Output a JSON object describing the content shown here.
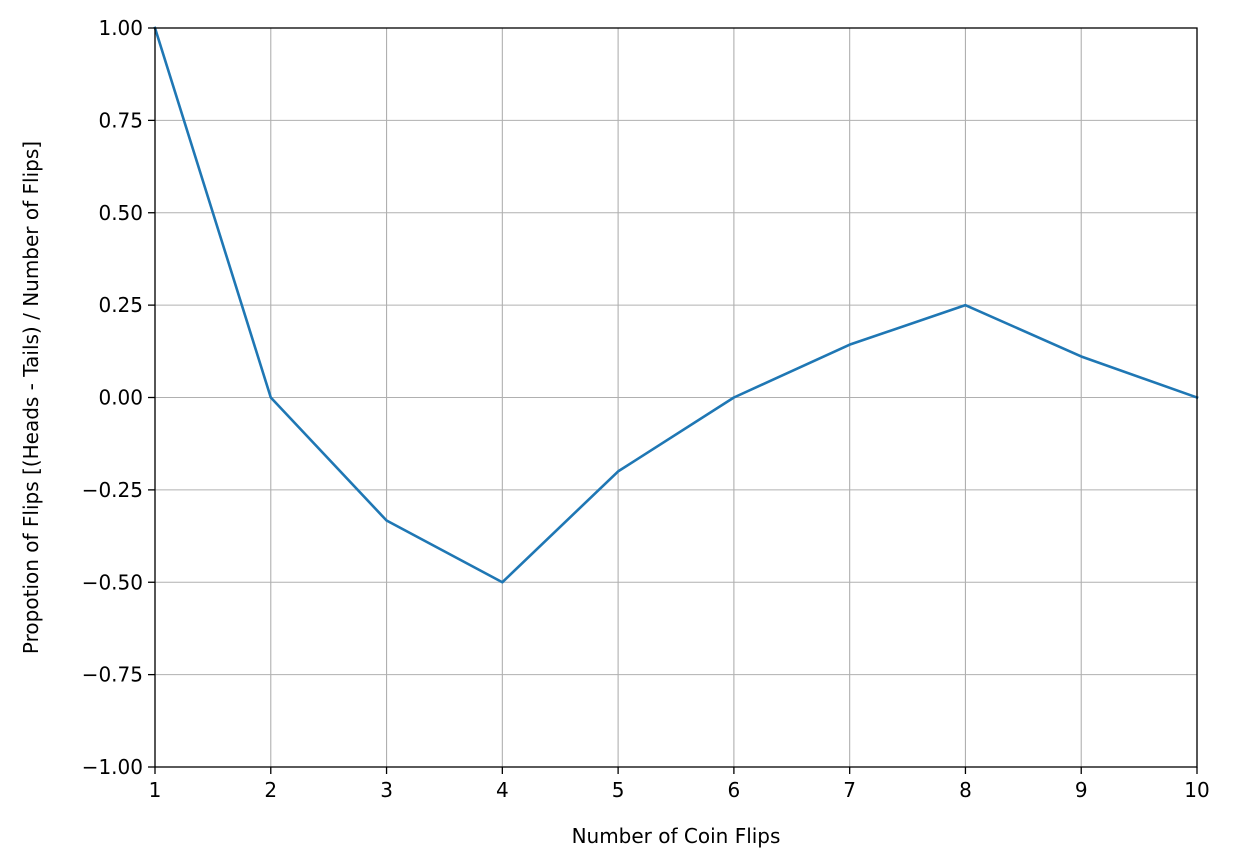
{
  "chart_data": {
    "type": "line",
    "title": "",
    "xlabel": "Number of Coin Flips",
    "ylabel": "Propotion of Flips [(Heads - Tails) / Number of Flips]",
    "xlim": [
      1,
      10
    ],
    "ylim": [
      -1.0,
      1.0
    ],
    "grid": true,
    "xticks": [
      1,
      2,
      3,
      4,
      5,
      6,
      7,
      8,
      9,
      10
    ],
    "xtick_labels": [
      "1",
      "2",
      "3",
      "4",
      "5",
      "6",
      "7",
      "8",
      "9",
      "10"
    ],
    "yticks": [
      -1.0,
      -0.75,
      -0.5,
      -0.25,
      0.0,
      0.25,
      0.5,
      0.75,
      1.0
    ],
    "ytick_labels": [
      "−1.00",
      "−0.75",
      "−0.50",
      "−0.25",
      "0.00",
      "0.25",
      "0.50",
      "0.75",
      "1.00"
    ],
    "series": [
      {
        "color": "#1f77b4",
        "x": [
          1,
          2,
          3,
          4,
          5,
          6,
          7,
          8,
          9,
          10
        ],
        "y": [
          1.0,
          0.0,
          -0.333,
          -0.5,
          -0.2,
          0.0,
          0.143,
          0.25,
          0.111,
          0.0
        ]
      }
    ]
  },
  "colors": {
    "grid": "#b0b0b0",
    "axes": "#000000"
  }
}
